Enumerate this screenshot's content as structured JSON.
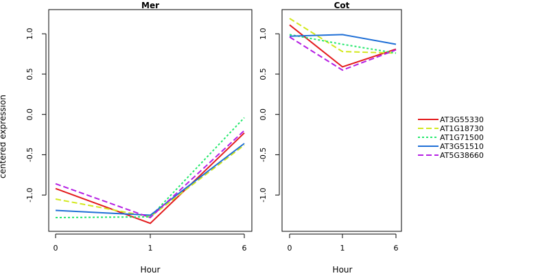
{
  "chart_data": [
    {
      "type": "line",
      "title": "Mer",
      "xlabel": "Hour",
      "ylabel": "centered expression",
      "categories": [
        "0",
        "1",
        "6"
      ],
      "ylim": [
        -1.45,
        1.3
      ],
      "yticks": [
        -1.0,
        -0.5,
        0.0,
        0.5,
        1.0
      ],
      "ytick_labels": [
        "-1.0",
        "-0.5",
        "0.0",
        "0.5",
        "1.0"
      ],
      "grid": false,
      "series": [
        {
          "name": "AT3G55330",
          "color": "#e31a1c",
          "dash": "solid",
          "values": [
            -0.92,
            -1.35,
            -0.23
          ]
        },
        {
          "name": "AT1G18730",
          "color": "#d2e81c",
          "dash": "dashed",
          "values": [
            -1.05,
            -1.27,
            -0.38
          ]
        },
        {
          "name": "AT1G71500",
          "color": "#22e86b",
          "dash": "dotted",
          "values": [
            -1.28,
            -1.27,
            -0.04
          ]
        },
        {
          "name": "AT3G51510",
          "color": "#1f6fd6",
          "dash": "solid",
          "values": [
            -1.19,
            -1.25,
            -0.36
          ]
        },
        {
          "name": "AT5G38660",
          "color": "#b51ee3",
          "dash": "dashed",
          "values": [
            -0.86,
            -1.28,
            -0.2
          ]
        }
      ]
    },
    {
      "type": "line",
      "title": "Cot",
      "xlabel": "Hour",
      "ylabel": "",
      "categories": [
        "0",
        "1",
        "6"
      ],
      "ylim": [
        -1.45,
        1.3
      ],
      "yticks": [
        -1.0,
        -0.5,
        0.0,
        0.5,
        1.0
      ],
      "ytick_labels": [
        "-1.0",
        "-0.5",
        "0.0",
        "0.5",
        "1.0"
      ],
      "grid": false,
      "series": [
        {
          "name": "AT3G55330",
          "color": "#e31a1c",
          "dash": "solid",
          "values": [
            1.11,
            0.59,
            0.81
          ]
        },
        {
          "name": "AT1G18730",
          "color": "#d2e81c",
          "dash": "dashed",
          "values": [
            1.19,
            0.78,
            0.76
          ]
        },
        {
          "name": "AT1G71500",
          "color": "#22e86b",
          "dash": "dotted",
          "values": [
            0.99,
            0.87,
            0.76
          ]
        },
        {
          "name": "AT3G51510",
          "color": "#1f6fd6",
          "dash": "solid",
          "values": [
            0.97,
            0.99,
            0.87
          ]
        },
        {
          "name": "AT5G38660",
          "color": "#b51ee3",
          "dash": "dashed",
          "values": [
            0.96,
            0.55,
            0.8
          ]
        }
      ]
    }
  ],
  "legend": {
    "placement": "right",
    "entries": [
      {
        "label": "AT3G55330",
        "color": "#e31a1c",
        "dash": "solid"
      },
      {
        "label": "AT1G18730",
        "color": "#d2e81c",
        "dash": "dashed"
      },
      {
        "label": "AT1G71500",
        "color": "#22e86b",
        "dash": "dotted"
      },
      {
        "label": "AT3G51510",
        "color": "#1f6fd6",
        "dash": "solid"
      },
      {
        "label": "AT5G38660",
        "color": "#b51ee3",
        "dash": "dashed"
      }
    ]
  }
}
